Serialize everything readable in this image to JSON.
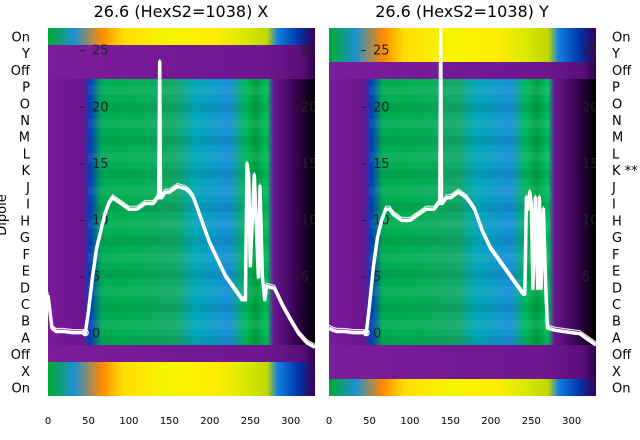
{
  "chart_data": [
    {
      "type": "heatmap",
      "title": "26.6 (HexS2=1038) X",
      "ylabel": "Dipole",
      "row_labels": [
        "On",
        "Y",
        "Off",
        "P",
        "O",
        "N",
        "M",
        "L",
        "K",
        "J",
        "I",
        "H",
        "G",
        "F",
        "E",
        "D",
        "C",
        "B",
        "A",
        "Off",
        "X",
        "On"
      ],
      "x_ticks": [
        0,
        50,
        100,
        150,
        200,
        250,
        300
      ],
      "xlim": [
        0,
        330
      ],
      "overlay_ylim": [
        -5.5,
        27
      ],
      "overlay_ticks": [
        0,
        5,
        10,
        15,
        20,
        25
      ],
      "overlay_series": [
        {
          "x": [
            0,
            5,
            10,
            20,
            30,
            40,
            43,
            46,
            50,
            55,
            60,
            65,
            70,
            75,
            80,
            90,
            100,
            110,
            120,
            130,
            135,
            137,
            138,
            139,
            140,
            145,
            150,
            160,
            170,
            175,
            180,
            190,
            200,
            210,
            220,
            230,
            240,
            244,
            246,
            248,
            250,
            255,
            260,
            262,
            265,
            268,
            270,
            280,
            290,
            300,
            310,
            320,
            330
          ],
          "y": [
            3.4,
            0.5,
            0.2,
            0.2,
            0.1,
            0.1,
            0.1,
            0.0,
            2.0,
            5.0,
            7.5,
            9.0,
            10.5,
            11.5,
            12.0,
            11.5,
            11.0,
            11.0,
            11.5,
            11.5,
            12.0,
            12.0,
            24.0,
            12.0,
            12.0,
            12.5,
            12.5,
            13.0,
            12.8,
            12.5,
            12.0,
            10.0,
            8.0,
            6.5,
            5.0,
            4.0,
            3.0,
            3.0,
            15.0,
            14.0,
            6.0,
            14.0,
            5.0,
            13.0,
            5.0,
            3.0,
            4.2,
            4.0,
            2.5,
            1.2,
            0.0,
            -0.8,
            -1.2
          ]
        }
      ]
    },
    {
      "type": "heatmap",
      "title": "26.6 (HexS2=1038) Y",
      "row_labels": [
        "On",
        "Y",
        "Off",
        "P",
        "O",
        "N",
        "M",
        "L",
        "K **",
        "J",
        "I",
        "H",
        "G",
        "F",
        "E",
        "D",
        "C",
        "B",
        "A",
        "Off",
        "X",
        "On"
      ],
      "x_ticks": [
        0,
        50,
        100,
        150,
        200,
        250,
        300
      ],
      "xlim": [
        0,
        330
      ],
      "overlay_ylim": [
        -5.5,
        27
      ],
      "overlay_ticks": [
        0,
        5,
        10,
        15,
        20,
        25
      ],
      "overlay_series": [
        {
          "x": [
            0,
            5,
            10,
            20,
            30,
            40,
            43,
            46,
            50,
            55,
            60,
            65,
            70,
            75,
            80,
            90,
            100,
            110,
            120,
            130,
            135,
            137,
            138,
            139,
            140,
            145,
            150,
            160,
            170,
            175,
            180,
            190,
            200,
            210,
            220,
            230,
            240,
            242,
            244,
            246,
            248,
            250,
            252,
            255,
            258,
            260,
            262,
            265,
            268,
            270,
            280,
            290,
            300,
            310,
            320,
            330
          ],
          "y": [
            0.5,
            0.3,
            0.2,
            0.2,
            0.1,
            0.1,
            0.1,
            0.0,
            2.5,
            6.0,
            8.5,
            10.0,
            11.0,
            11.0,
            10.5,
            10.0,
            10.0,
            10.5,
            11.0,
            11.0,
            11.5,
            11.5,
            27.0,
            11.5,
            11.5,
            12.0,
            12.0,
            12.5,
            12.0,
            11.5,
            11.0,
            9.0,
            7.5,
            6.5,
            5.5,
            4.5,
            3.5,
            3.5,
            12.0,
            11.0,
            12.5,
            11.5,
            4.0,
            12.0,
            4.0,
            12.0,
            4.0,
            11.0,
            4.0,
            0.5,
            0.3,
            0.2,
            0.1,
            0.0,
            -0.5,
            -1.0
          ]
        }
      ]
    }
  ]
}
